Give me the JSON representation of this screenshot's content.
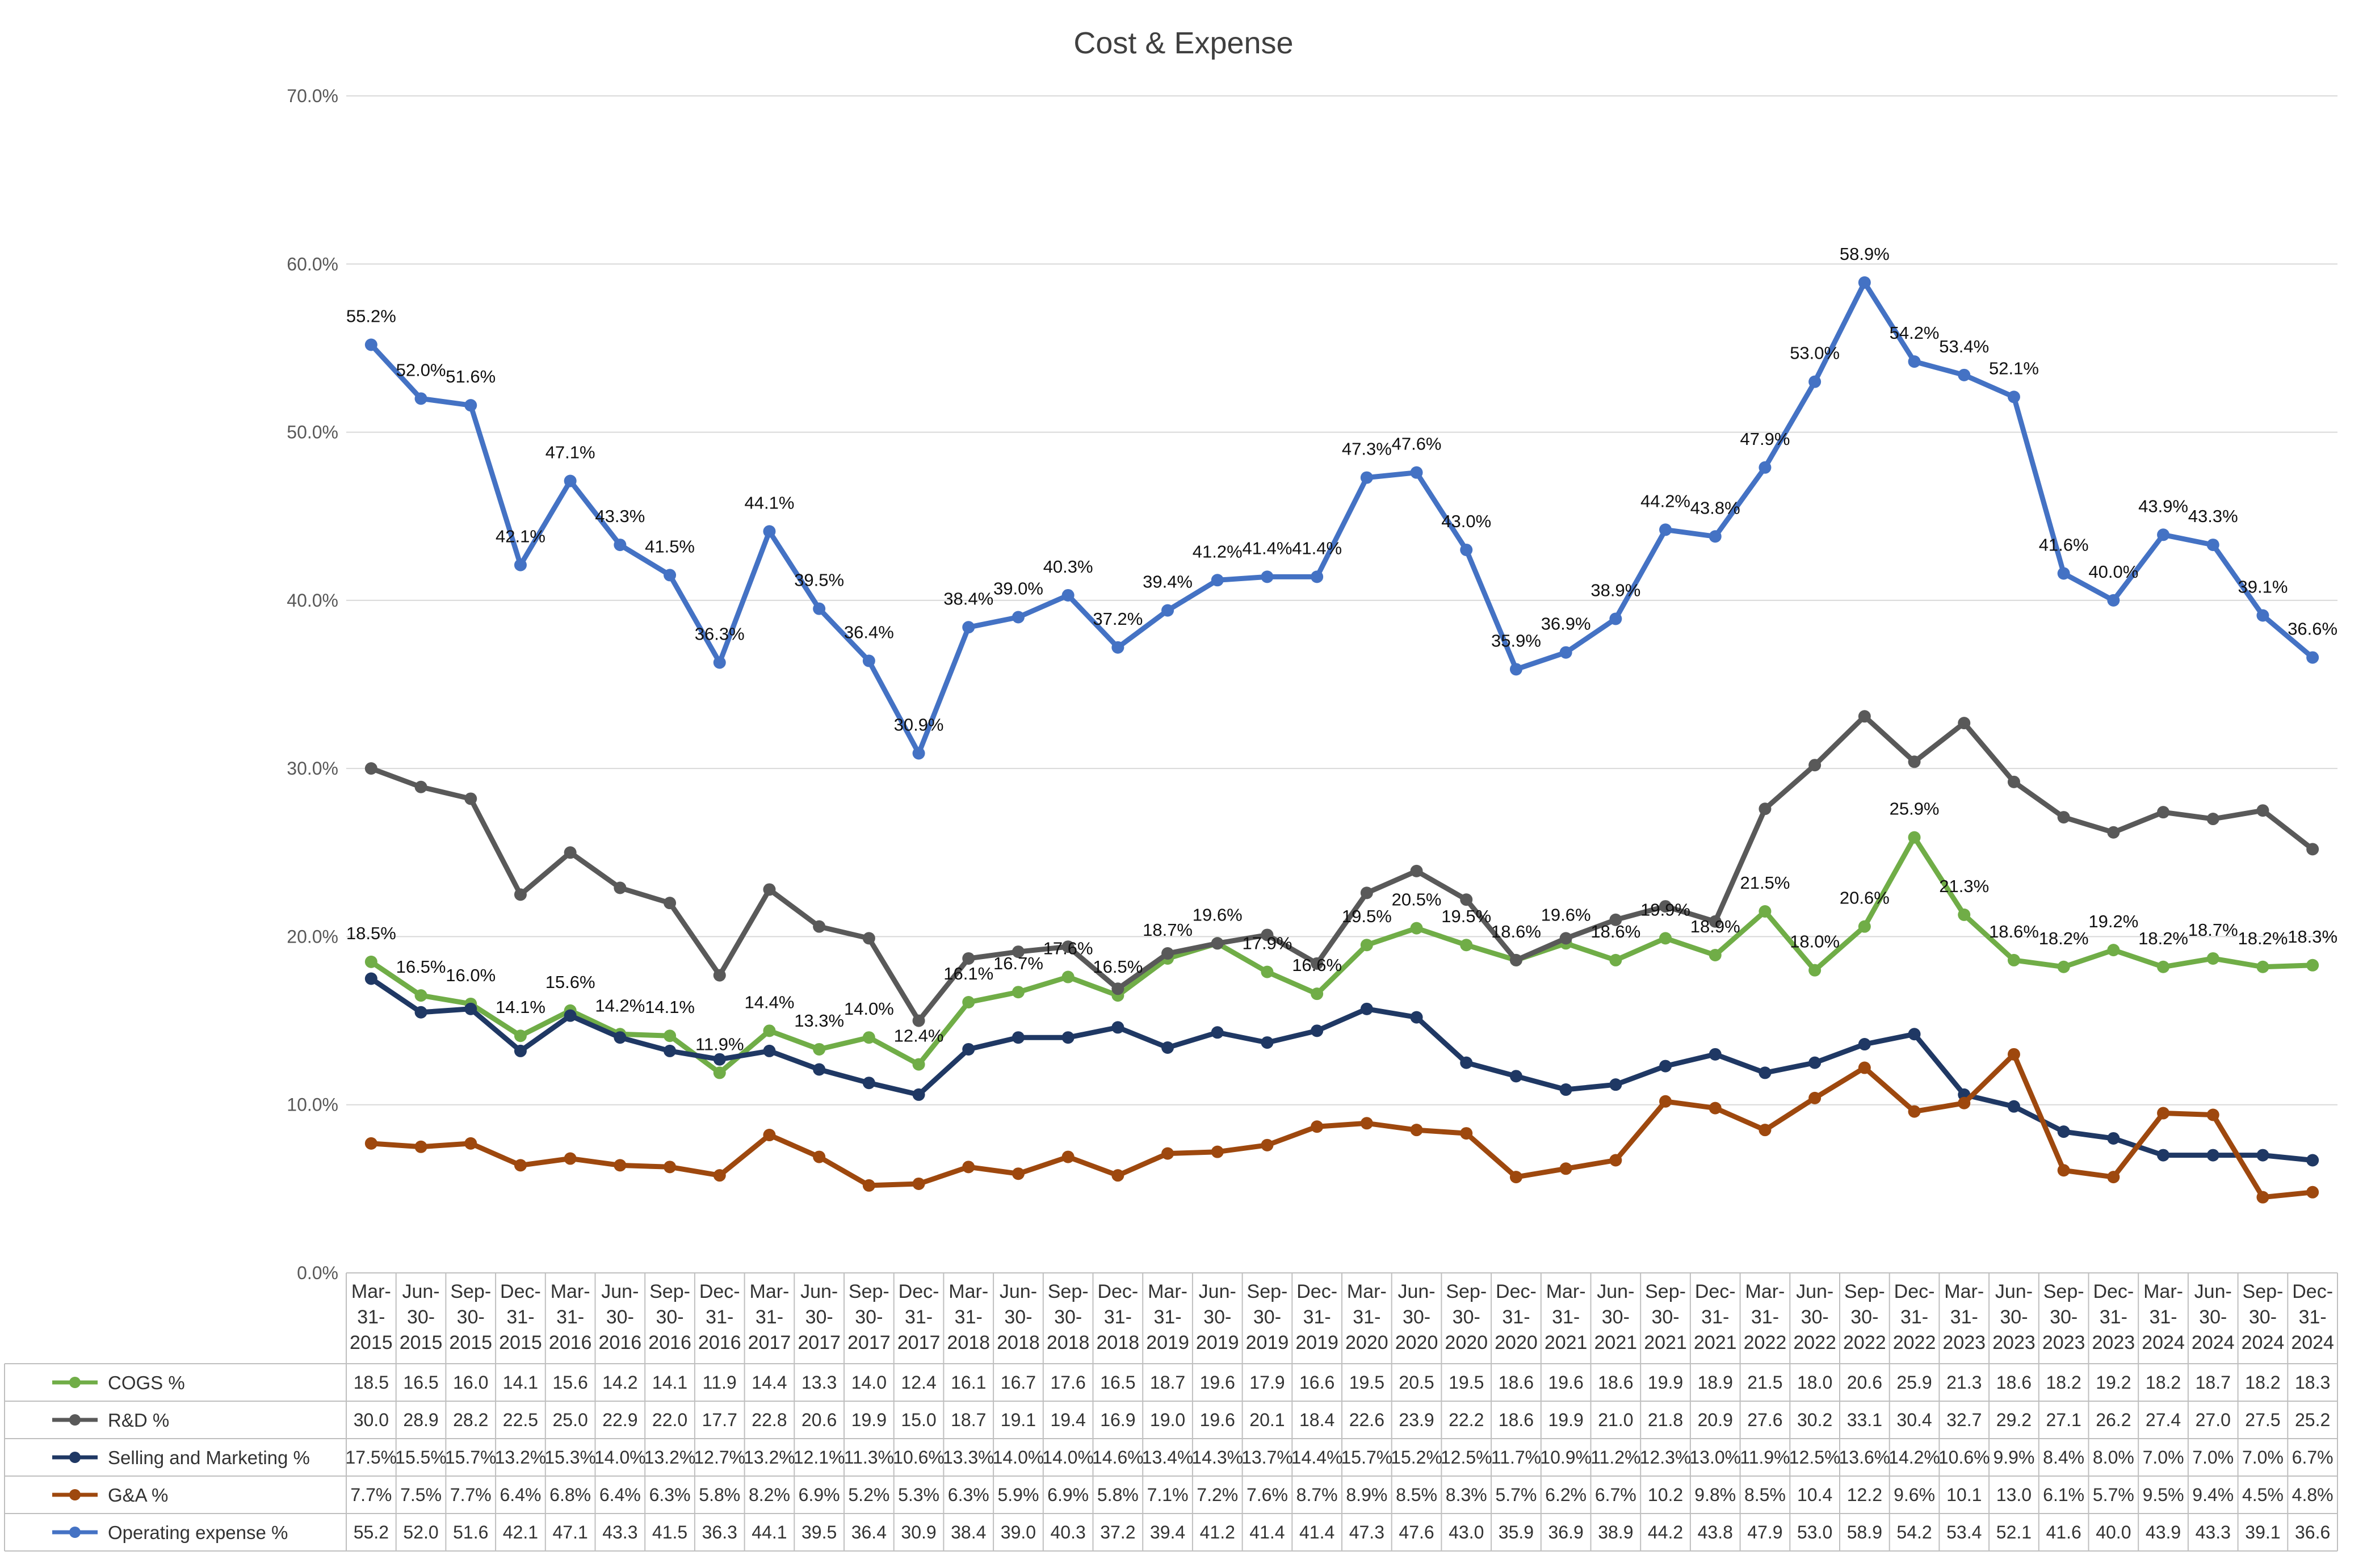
{
  "chart_data": {
    "type": "line",
    "title": "Cost & Expense",
    "ylim": [
      0,
      70
    ],
    "y_ticks": [
      0,
      10,
      20,
      30,
      40,
      50,
      60,
      70
    ],
    "y_tick_labels": [
      "0.0%",
      "10.0%",
      "20.0%",
      "30.0%",
      "40.0%",
      "50.0%",
      "60.0%",
      "70.0%"
    ],
    "grid": "horizontal",
    "legend": "data-table-bottom",
    "categories": [
      [
        "Mar-",
        "31-",
        "2015"
      ],
      [
        "Jun-",
        "30-",
        "2015"
      ],
      [
        "Sep-",
        "30-",
        "2015"
      ],
      [
        "Dec-",
        "31-",
        "2015"
      ],
      [
        "Mar-",
        "31-",
        "2016"
      ],
      [
        "Jun-",
        "30-",
        "2016"
      ],
      [
        "Sep-",
        "30-",
        "2016"
      ],
      [
        "Dec-",
        "31-",
        "2016"
      ],
      [
        "Mar-",
        "31-",
        "2017"
      ],
      [
        "Jun-",
        "30-",
        "2017"
      ],
      [
        "Sep-",
        "30-",
        "2017"
      ],
      [
        "Dec-",
        "31-",
        "2017"
      ],
      [
        "Mar-",
        "31-",
        "2018"
      ],
      [
        "Jun-",
        "30-",
        "2018"
      ],
      [
        "Sep-",
        "30-",
        "2018"
      ],
      [
        "Dec-",
        "31-",
        "2018"
      ],
      [
        "Mar-",
        "31-",
        "2019"
      ],
      [
        "Jun-",
        "30-",
        "2019"
      ],
      [
        "Sep-",
        "30-",
        "2019"
      ],
      [
        "Dec-",
        "31-",
        "2019"
      ],
      [
        "Mar-",
        "31-",
        "2020"
      ],
      [
        "Jun-",
        "30-",
        "2020"
      ],
      [
        "Sep-",
        "30-",
        "2020"
      ],
      [
        "Dec-",
        "31-",
        "2020"
      ],
      [
        "Mar-",
        "31-",
        "2021"
      ],
      [
        "Jun-",
        "30-",
        "2021"
      ],
      [
        "Sep-",
        "30-",
        "2021"
      ],
      [
        "Dec-",
        "31-",
        "2021"
      ],
      [
        "Mar-",
        "31-",
        "2022"
      ],
      [
        "Jun-",
        "30-",
        "2022"
      ],
      [
        "Sep-",
        "30-",
        "2022"
      ],
      [
        "Dec-",
        "31-",
        "2022"
      ],
      [
        "Mar-",
        "31-",
        "2023"
      ],
      [
        "Jun-",
        "30-",
        "2023"
      ],
      [
        "Sep-",
        "30-",
        "2023"
      ],
      [
        "Dec-",
        "31-",
        "2023"
      ],
      [
        "Mar-",
        "31-",
        "2024"
      ],
      [
        "Jun-",
        "30-",
        "2024"
      ],
      [
        "Sep-",
        "30-",
        "2024"
      ],
      [
        "Dec-",
        "31-",
        "2024"
      ]
    ],
    "series": [
      {
        "name": "COGS %",
        "color": "#70AD47",
        "values": [
          18.5,
          16.5,
          16.0,
          14.1,
          15.6,
          14.2,
          14.1,
          11.9,
          14.4,
          13.3,
          14.0,
          12.4,
          16.1,
          16.7,
          17.6,
          16.5,
          18.7,
          19.6,
          17.9,
          16.6,
          19.5,
          20.5,
          19.5,
          18.6,
          19.6,
          18.6,
          19.9,
          18.9,
          21.5,
          18.0,
          20.6,
          25.9,
          21.3,
          18.6,
          18.2,
          19.2,
          18.2,
          18.7,
          18.2,
          18.3
        ],
        "table_values": [
          "18.5",
          "16.5",
          "16.0",
          "14.1",
          "15.6",
          "14.2",
          "14.1",
          "11.9",
          "14.4",
          "13.3",
          "14.0",
          "12.4",
          "16.1",
          "16.7",
          "17.6",
          "16.5",
          "18.7",
          "19.6",
          "17.9",
          "16.6",
          "19.5",
          "20.5",
          "19.5",
          "18.6",
          "19.6",
          "18.6",
          "19.9",
          "18.9",
          "21.5",
          "18.0",
          "20.6",
          "25.9",
          "21.3",
          "18.6",
          "18.2",
          "19.2",
          "18.2",
          "18.7",
          "18.2",
          "18.3"
        ],
        "data_labels": [
          "18.5%",
          "16.5%",
          "16.0%",
          "14.1%",
          "15.6%",
          "14.2%",
          "14.1%",
          "11.9%",
          "14.4%",
          "13.3%",
          "14.0%",
          "12.4%",
          "16.1%",
          "16.7%",
          "17.6%",
          "16.5%",
          "18.7%",
          "19.6%",
          "17.9%",
          "16.6%",
          "19.5%",
          "20.5%",
          "19.5%",
          "18.6%",
          "19.6%",
          "18.6%",
          "19.9%",
          "18.9%",
          "21.5%",
          "18.0%",
          "20.6%",
          "25.9%",
          "21.3%",
          "18.6%",
          "18.2%",
          "19.2%",
          "18.2%",
          "18.7%",
          "18.2%",
          "18.3%"
        ]
      },
      {
        "name": "R&D %",
        "color": "#595959",
        "values": [
          30.0,
          28.9,
          28.2,
          22.5,
          25.0,
          22.9,
          22.0,
          17.7,
          22.8,
          20.6,
          19.9,
          15.0,
          18.7,
          19.1,
          19.4,
          16.9,
          19.0,
          19.6,
          20.1,
          18.4,
          22.6,
          23.9,
          22.2,
          18.6,
          19.9,
          21.0,
          21.8,
          20.9,
          27.6,
          30.2,
          33.1,
          30.4,
          32.7,
          29.2,
          27.1,
          26.2,
          27.4,
          27.0,
          27.5,
          25.2
        ],
        "table_values": [
          "30.0",
          "28.9",
          "28.2",
          "22.5",
          "25.0",
          "22.9",
          "22.0",
          "17.7",
          "22.8",
          "20.6",
          "19.9",
          "15.0",
          "18.7",
          "19.1",
          "19.4",
          "16.9",
          "19.0",
          "19.6",
          "20.1",
          "18.4",
          "22.6",
          "23.9",
          "22.2",
          "18.6",
          "19.9",
          "21.0",
          "21.8",
          "20.9",
          "27.6",
          "30.2",
          "33.1",
          "30.4",
          "32.7",
          "29.2",
          "27.1",
          "26.2",
          "27.4",
          "27.0",
          "27.5",
          "25.2"
        ]
      },
      {
        "name": "Selling and Marketing %",
        "color": "#1F3864",
        "values": [
          17.5,
          15.5,
          15.7,
          13.2,
          15.3,
          14.0,
          13.2,
          12.7,
          13.2,
          12.1,
          11.3,
          10.6,
          13.3,
          14.0,
          14.0,
          14.6,
          13.4,
          14.3,
          13.7,
          14.4,
          15.7,
          15.2,
          12.5,
          11.7,
          10.9,
          11.2,
          12.3,
          13.0,
          11.9,
          12.5,
          13.6,
          14.2,
          10.6,
          9.9,
          8.4,
          8.0,
          7.0,
          7.0,
          7.0,
          6.7
        ],
        "table_values": [
          "17.5%",
          "15.5%",
          "15.7%",
          "13.2%",
          "15.3%",
          "14.0%",
          "13.2%",
          "12.7%",
          "13.2%",
          "12.1%",
          "11.3%",
          "10.6%",
          "13.3%",
          "14.0%",
          "14.0%",
          "14.6%",
          "13.4%",
          "14.3%",
          "13.7%",
          "14.4%",
          "15.7%",
          "15.2%",
          "12.5%",
          "11.7%",
          "10.9%",
          "11.2%",
          "12.3%",
          "13.0%",
          "11.9%",
          "12.5%",
          "13.6%",
          "14.2%",
          "10.6%",
          "9.9%",
          "8.4%",
          "8.0%",
          "7.0%",
          "7.0%",
          "7.0%",
          "6.7%"
        ]
      },
      {
        "name": "G&A %",
        "color": "#9E480E",
        "values": [
          7.7,
          7.5,
          7.7,
          6.4,
          6.8,
          6.4,
          6.3,
          5.8,
          8.2,
          6.9,
          5.2,
          5.3,
          6.3,
          5.9,
          6.9,
          5.8,
          7.1,
          7.2,
          7.6,
          8.7,
          8.9,
          8.5,
          8.3,
          5.7,
          6.2,
          6.7,
          10.2,
          9.8,
          8.5,
          10.4,
          12.2,
          9.6,
          10.1,
          13.0,
          6.1,
          5.7,
          9.5,
          9.4,
          4.5,
          4.8
        ],
        "table_values": [
          "7.7%",
          "7.5%",
          "7.7%",
          "6.4%",
          "6.8%",
          "6.4%",
          "6.3%",
          "5.8%",
          "8.2%",
          "6.9%",
          "5.2%",
          "5.3%",
          "6.3%",
          "5.9%",
          "6.9%",
          "5.8%",
          "7.1%",
          "7.2%",
          "7.6%",
          "8.7%",
          "8.9%",
          "8.5%",
          "8.3%",
          "5.7%",
          "6.2%",
          "6.7%",
          "10.2",
          "9.8%",
          "8.5%",
          "10.4",
          "12.2",
          "9.6%",
          "10.1",
          "13.0",
          "6.1%",
          "5.7%",
          "9.5%",
          "9.4%",
          "4.5%",
          "4.8%"
        ]
      },
      {
        "name": "Operating expense %",
        "color": "#4472C4",
        "values": [
          55.2,
          52.0,
          51.6,
          42.1,
          47.1,
          43.3,
          41.5,
          36.3,
          44.1,
          39.5,
          36.4,
          30.9,
          38.4,
          39.0,
          40.3,
          37.2,
          39.4,
          41.2,
          41.4,
          41.4,
          47.3,
          47.6,
          43.0,
          35.9,
          36.9,
          38.9,
          44.2,
          43.8,
          47.9,
          53.0,
          58.9,
          54.2,
          53.4,
          52.1,
          41.6,
          40.0,
          43.9,
          43.3,
          39.1,
          36.6
        ],
        "table_values": [
          "55.2",
          "52.0",
          "51.6",
          "42.1",
          "47.1",
          "43.3",
          "41.5",
          "36.3",
          "44.1",
          "39.5",
          "36.4",
          "30.9",
          "38.4",
          "39.0",
          "40.3",
          "37.2",
          "39.4",
          "41.2",
          "41.4",
          "41.4",
          "47.3",
          "47.6",
          "43.0",
          "35.9",
          "36.9",
          "38.9",
          "44.2",
          "43.8",
          "47.9",
          "53.0",
          "58.9",
          "54.2",
          "53.4",
          "52.1",
          "41.6",
          "40.0",
          "43.9",
          "43.3",
          "39.1",
          "36.6"
        ],
        "data_labels": [
          "55.2%",
          "52.0%",
          "51.6%",
          "42.1%",
          "47.1%",
          "43.3%",
          "41.5%",
          "36.3%",
          "44.1%",
          "39.5%",
          "36.4%",
          "30.9%",
          "38.4%",
          "39.0%",
          "40.3%",
          "37.2%",
          "39.4%",
          "41.2%",
          "41.4%",
          "41.4%",
          "47.3%",
          "47.6%",
          "43.0%",
          "35.9%",
          "36.9%",
          "38.9%",
          "44.2%",
          "43.8%",
          "47.9%",
          "53.0%",
          "58.9%",
          "54.2%",
          "53.4%",
          "52.1%",
          "41.6%",
          "40.0%",
          "43.9%",
          "43.3%",
          "39.1%",
          "36.6%"
        ]
      }
    ]
  }
}
